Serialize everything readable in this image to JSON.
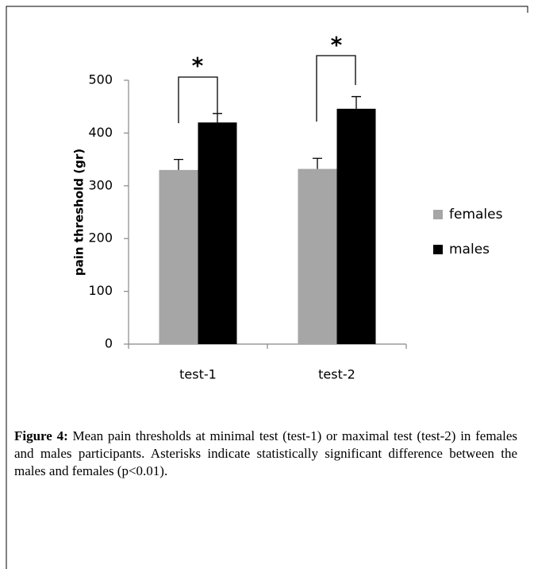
{
  "chart_data": {
    "type": "bar",
    "ylabel": "pain threshold (gr)",
    "categories": [
      "test-1",
      "test-2"
    ],
    "series": [
      {
        "name": "females",
        "color": "#a6a6a6",
        "values": [
          330,
          332
        ],
        "errors": [
          20,
          20
        ]
      },
      {
        "name": "males",
        "color": "#000000",
        "values": [
          420,
          446
        ],
        "errors": [
          17,
          23
        ]
      }
    ],
    "ylim": [
      0,
      500
    ],
    "yticks": [
      0,
      100,
      200,
      300,
      400,
      500
    ],
    "legend": "right",
    "annotations": [
      "*",
      "*"
    ],
    "caption_label": "Figure 4:",
    "caption": "Mean pain thresholds at minimal test (test-1) or maximal test (test-2) in females and males participants. Asterisks indicate statistically significant difference between the males and females (p<0.01)."
  }
}
